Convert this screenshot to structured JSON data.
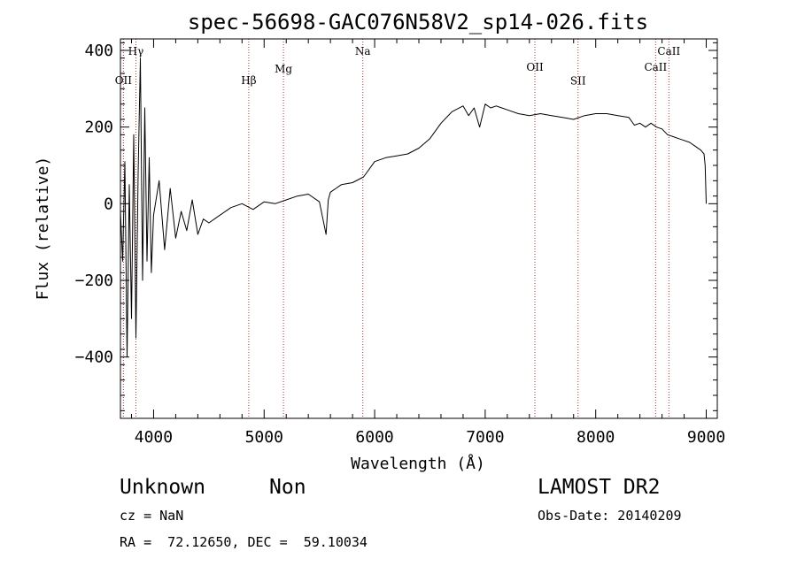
{
  "chart_data": {
    "type": "line",
    "title": "spec-56698-GAC076N58V2_sp14-026.fits",
    "xlabel": "Wavelength (Å)",
    "ylabel": "Flux (relative)",
    "xlim": [
      3700,
      9100
    ],
    "ylim": [
      -560,
      430
    ],
    "xticks": [
      4000,
      5000,
      6000,
      7000,
      8000,
      9000
    ],
    "yticks": [
      -400,
      -200,
      0,
      200,
      400
    ],
    "grid": false,
    "line_color": "#000000",
    "marker_color": "#b03030",
    "lines": [
      {
        "label": "OII",
        "x": 3727,
        "label_y": 322
      },
      {
        "label": "Hγ",
        "x": 3840,
        "label_y": 398
      },
      {
        "label": "Hβ",
        "x": 4861,
        "label_y": 322
      },
      {
        "label": "Mg",
        "x": 5175,
        "label_y": 352
      },
      {
        "label": "Na",
        "x": 5893,
        "label_y": 398
      },
      {
        "label": "OII",
        "x": 7450,
        "label_y": 356
      },
      {
        "label": "SII",
        "x": 7840,
        "label_y": 320
      },
      {
        "label": "CaII",
        "x": 8542,
        "label_y": 356
      },
      {
        "label": "CaII",
        "x": 8662,
        "label_y": 398
      }
    ],
    "series": [
      {
        "x": [
          3700,
          3720,
          3740,
          3760,
          3780,
          3800,
          3820,
          3840,
          3860,
          3880,
          3900,
          3920,
          3940,
          3960,
          3980,
          4000,
          4050,
          4100,
          4150,
          4200,
          4250,
          4300,
          4350,
          4400,
          4450,
          4500,
          4600,
          4700,
          4800,
          4900,
          5000,
          5100,
          5200,
          5300,
          5400,
          5500,
          5560,
          5580,
          5600,
          5650,
          5700,
          5800,
          5900,
          6000,
          6100,
          6200,
          6300,
          6400,
          6500,
          6600,
          6700,
          6800,
          6850,
          6900,
          6950,
          7000,
          7050,
          7100,
          7150,
          7200,
          7300,
          7400,
          7500,
          7600,
          7700,
          7800,
          7900,
          8000,
          8100,
          8200,
          8300,
          8350,
          8400,
          8450,
          8500,
          8550,
          8600,
          8650,
          8700,
          8750,
          8800,
          8850,
          8900,
          8950,
          8980,
          8990,
          9000
        ],
        "y": [
          -20,
          -150,
          110,
          -400,
          50,
          -300,
          180,
          -350,
          80,
          380,
          -200,
          250,
          -150,
          120,
          -180,
          -30,
          60,
          -120,
          40,
          -90,
          -20,
          -70,
          10,
          -80,
          -40,
          -50,
          -30,
          -10,
          0,
          -15,
          5,
          0,
          10,
          20,
          25,
          5,
          -80,
          10,
          30,
          40,
          50,
          55,
          70,
          110,
          120,
          125,
          130,
          145,
          170,
          210,
          240,
          255,
          230,
          250,
          200,
          260,
          250,
          255,
          250,
          245,
          235,
          230,
          235,
          230,
          225,
          220,
          230,
          235,
          235,
          230,
          225,
          205,
          210,
          200,
          210,
          200,
          195,
          180,
          175,
          170,
          165,
          160,
          150,
          140,
          130,
          100,
          0
        ]
      }
    ]
  },
  "info": {
    "class_name": "Unknown",
    "subclass": "Non",
    "cz": "cz = NaN",
    "coords": "RA =  72.12650, DEC =  59.10034",
    "survey": "LAMOST DR2",
    "obs_date": "Obs-Date: 20140209"
  }
}
